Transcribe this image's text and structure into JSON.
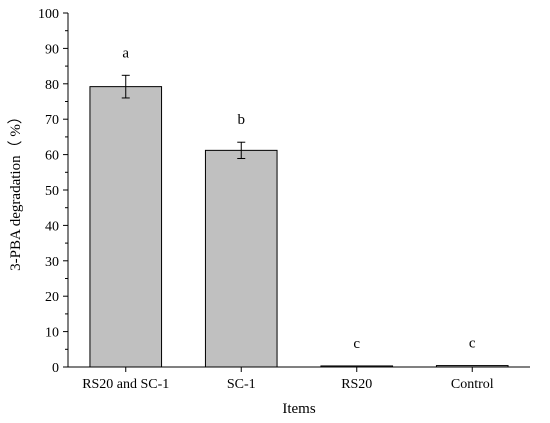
{
  "chart_data": {
    "type": "bar",
    "title": "",
    "xlabel": "Items",
    "ylabel": "3-PBA degradation（ %）",
    "ylim": [
      0,
      100
    ],
    "yticks": [
      0,
      10,
      20,
      30,
      40,
      50,
      60,
      70,
      80,
      90,
      100
    ],
    "categories": [
      "RS20 and SC-1",
      "SC-1",
      "RS20",
      "Control"
    ],
    "values": [
      79.2,
      61.2,
      0.3,
      0.4
    ],
    "errors": [
      3.2,
      2.3,
      0,
      0
    ],
    "significance": [
      "a",
      "b",
      "c",
      "c"
    ],
    "grid": false,
    "legend": "none",
    "colors": {
      "bar_fill": "#c0c0c0",
      "bar_stroke": "#000000",
      "axis": "#000000"
    }
  }
}
